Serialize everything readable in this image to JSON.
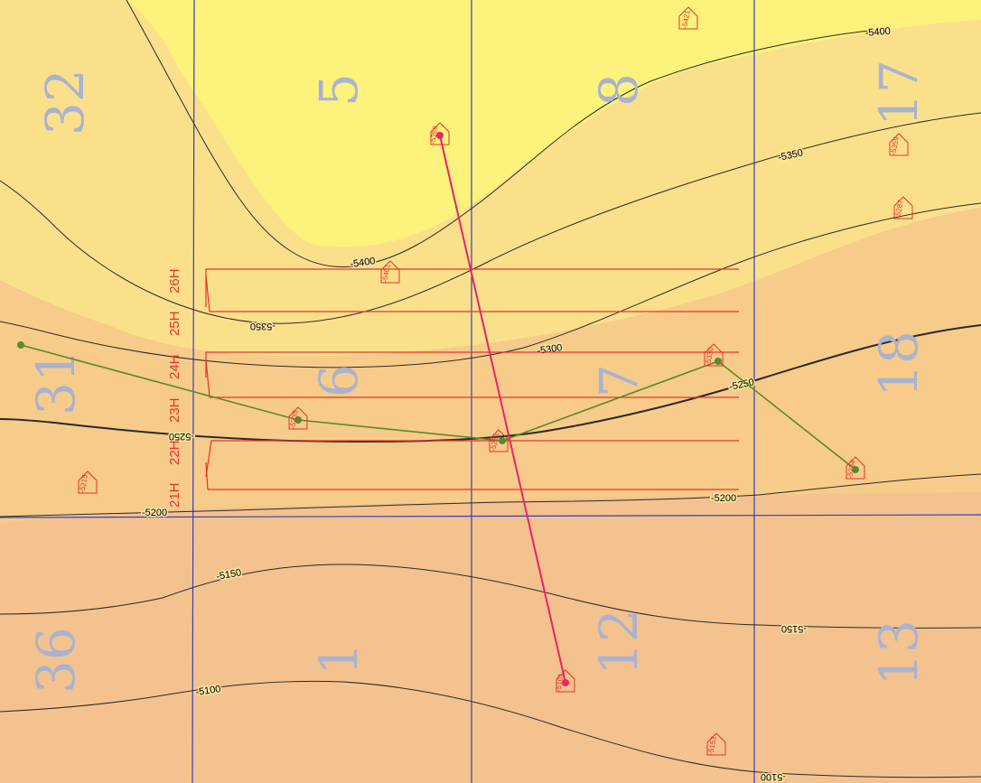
{
  "colors": {
    "band_deep": "#fcf27c",
    "band_mid": "#fbe08c",
    "band_shallow": "#f7cb8a",
    "band_shallowest": "#f4c28e",
    "contour": "#2a2a2a",
    "section_line": "#3040c0",
    "lateral": "#e8322a",
    "cross_section_pink": "#e8246a",
    "cross_section_green": "#5a8a2a",
    "section_number": "#a9b3d0"
  },
  "sections": [
    {
      "id": "s32",
      "label": "32"
    },
    {
      "id": "s5",
      "label": "5"
    },
    {
      "id": "s8",
      "label": "8"
    },
    {
      "id": "s17",
      "label": "17"
    },
    {
      "id": "s31",
      "label": "31"
    },
    {
      "id": "s6",
      "label": "6"
    },
    {
      "id": "s7",
      "label": "7"
    },
    {
      "id": "s18",
      "label": "18"
    },
    {
      "id": "s36",
      "label": "36"
    },
    {
      "id": "s1",
      "label": "1"
    },
    {
      "id": "s12",
      "label": "12"
    },
    {
      "id": "s13",
      "label": "13"
    }
  ],
  "contours": [
    {
      "id": "c5400a",
      "label": "-5400"
    },
    {
      "id": "c5400b",
      "label": "-5400"
    },
    {
      "id": "c5350a",
      "label": "-5350"
    },
    {
      "id": "c5350b",
      "label": "-5350"
    },
    {
      "id": "c5300",
      "label": "-5300"
    },
    {
      "id": "c5250a",
      "label": "-5250"
    },
    {
      "id": "c5250b",
      "label": "-5250"
    },
    {
      "id": "c5200a",
      "label": "-5200"
    },
    {
      "id": "c5200b",
      "label": "-5200"
    },
    {
      "id": "c5150a",
      "label": "-5150"
    },
    {
      "id": "c5150b",
      "label": "-5150"
    },
    {
      "id": "c5100a",
      "label": "-5100"
    },
    {
      "id": "c5100b",
      "label": "-5100"
    }
  ],
  "laterals": [
    "21H",
    "22H",
    "23H",
    "24H",
    "25H",
    "26H"
  ],
  "wells": [
    {
      "id": "w1",
      "label": "-5421",
      "control_point": true
    },
    {
      "id": "w2",
      "label": "-5359",
      "control_point": true
    },
    {
      "id": "w3",
      "label": "-5359",
      "control_point": true
    },
    {
      "id": "w4",
      "label": "-5287",
      "control_point": true
    },
    {
      "id": "w5",
      "label": "-5401",
      "control_point": true
    },
    {
      "id": "w6",
      "label": "-5330",
      "control_point": true
    },
    {
      "id": "w7",
      "label": "-5235",
      "control_point": true
    },
    {
      "id": "w8",
      "label": "-5281",
      "control_point": true
    },
    {
      "id": "w9",
      "label": "-5234",
      "control_point": true
    },
    {
      "id": "w10",
      "label": "-5215",
      "control_point": true
    },
    {
      "id": "w11",
      "label": "-5101",
      "control_point": true
    },
    {
      "id": "w12",
      "label": "-5153",
      "control_point": true
    }
  ]
}
